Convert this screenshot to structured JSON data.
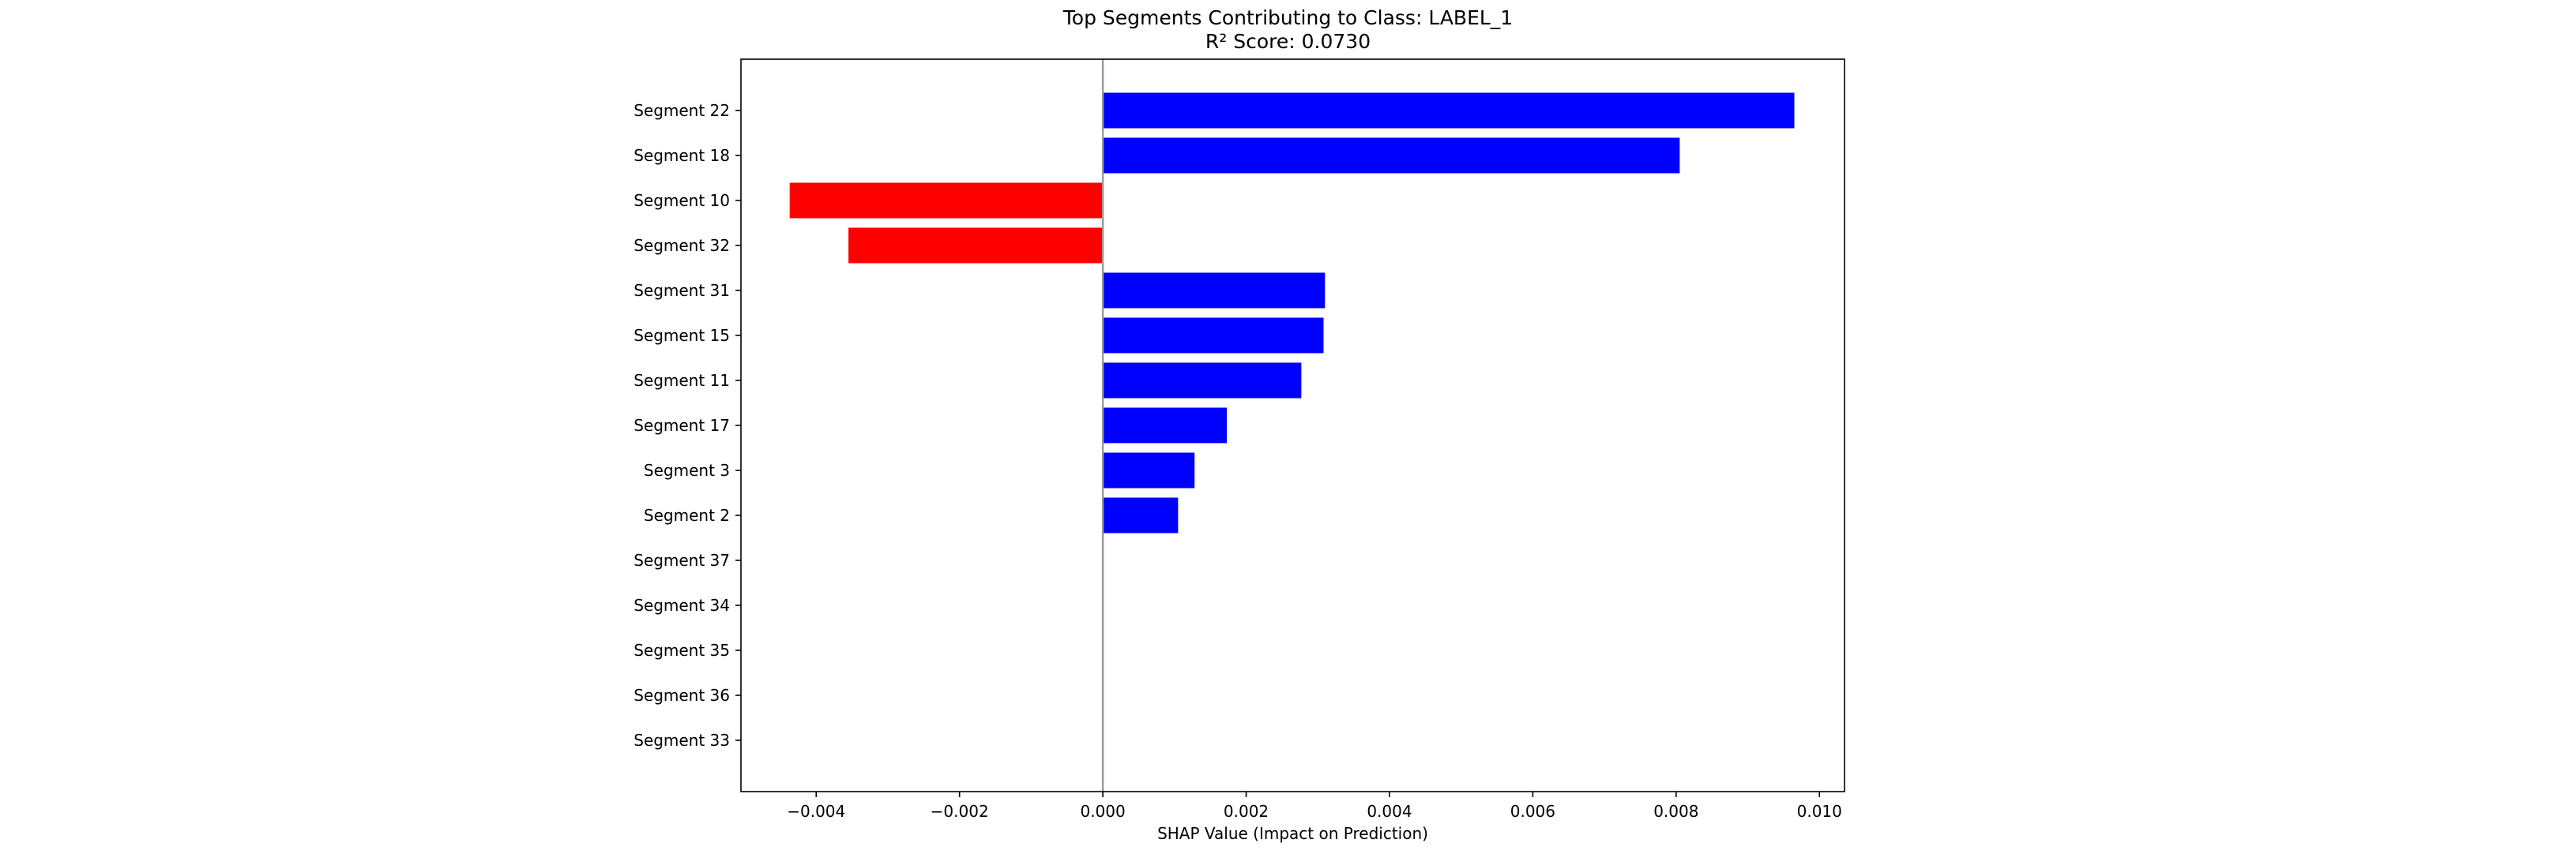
{
  "chart_data": {
    "type": "bar",
    "orientation": "horizontal",
    "title": "Top Segments Contributing to Class: LABEL_1",
    "subtitle": "R² Score: 0.0730",
    "xlabel": "SHAP Value (Impact on Prediction)",
    "ylabel": "",
    "xlim": [
      -0.00505,
      0.01035
    ],
    "xticks": [
      -0.004,
      -0.002,
      0.0,
      0.002,
      0.004,
      0.006,
      0.008,
      0.01
    ],
    "xtick_labels": [
      "−0.004",
      "−0.002",
      "0.000",
      "0.002",
      "0.004",
      "0.006",
      "0.008",
      "0.010"
    ],
    "categories": [
      "Segment 22",
      "Segment 18",
      "Segment 10",
      "Segment 32",
      "Segment 31",
      "Segment 15",
      "Segment 11",
      "Segment 17",
      "Segment 3",
      "Segment 2",
      "Segment 37",
      "Segment 34",
      "Segment 35",
      "Segment 36",
      "Segment 33"
    ],
    "values": [
      0.00965,
      0.00805,
      -0.00437,
      -0.00355,
      0.0031,
      0.00308,
      0.00277,
      0.00173,
      0.00128,
      0.00105,
      0.0,
      0.0,
      0.0,
      0.0,
      0.0
    ],
    "colors": {
      "positive": "#0000ff",
      "negative": "#ff0000",
      "zero_line": "#999999"
    },
    "grid": false,
    "legend": "none"
  }
}
